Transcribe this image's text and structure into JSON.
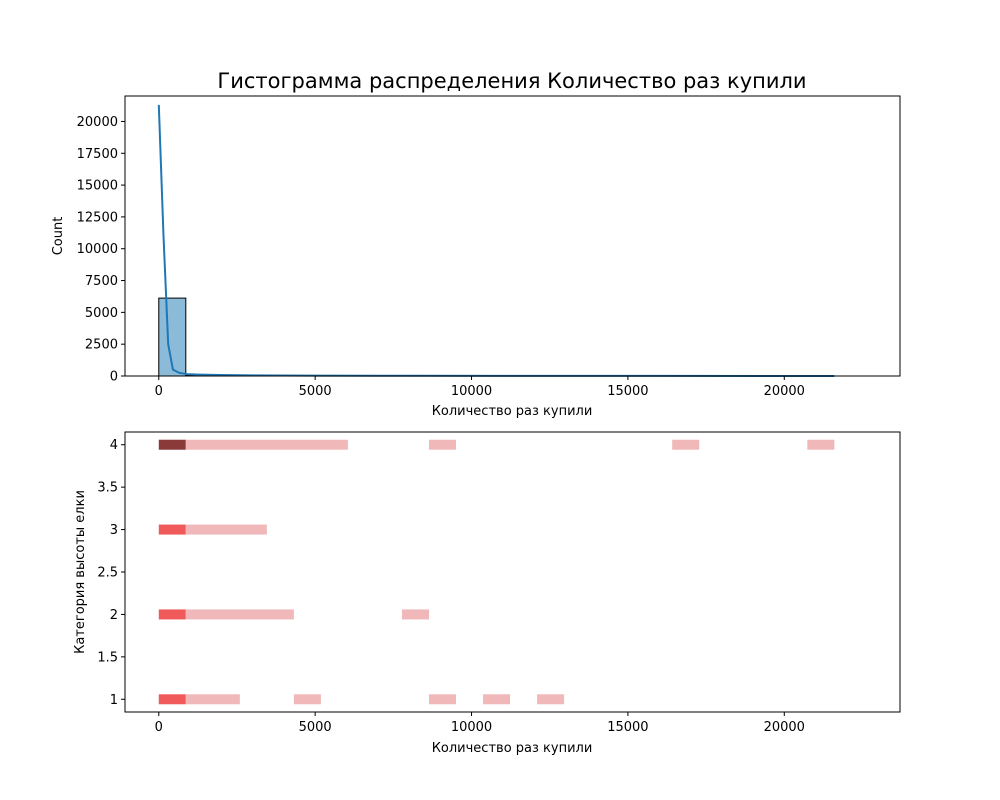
{
  "chart_data": [
    {
      "type": "bar",
      "title": "Гистограмма распределения Количество раз купили",
      "xlabel": "Количество раз купили",
      "ylabel": "Count",
      "xlim": [
        -1080,
        23700
      ],
      "ylim": [
        0,
        22000
      ],
      "xticks": [
        0,
        5000,
        10000,
        15000,
        20000
      ],
      "yticks": [
        0,
        2500,
        5000,
        7500,
        10000,
        12500,
        15000,
        17500,
        20000
      ],
      "bar_color": "#8cbad9",
      "bar_edge_color": "#000000",
      "kde_color": "#1f77b4",
      "bins": [
        {
          "x0": 0,
          "x1": 864,
          "count": 6120
        },
        {
          "x0": 864,
          "x1": 1728,
          "count": 60
        },
        {
          "x0": 1728,
          "x1": 2592,
          "count": 20
        },
        {
          "x0": 2592,
          "x1": 3456,
          "count": 10
        },
        {
          "x0": 3456,
          "x1": 4320,
          "count": 8
        },
        {
          "x0": 4320,
          "x1": 5184,
          "count": 5
        },
        {
          "x0": 5184,
          "x1": 6048,
          "count": 3
        }
      ],
      "kde": {
        "x": [
          0,
          150,
          300,
          450,
          650,
          900,
          1300,
          2000,
          3000,
          5000,
          8000,
          12000,
          16000,
          21600
        ],
        "y": [
          21300,
          11000,
          2500,
          500,
          250,
          150,
          110,
          80,
          50,
          30,
          15,
          8,
          5,
          3
        ]
      }
    },
    {
      "type": "heatmap",
      "xlabel": "Количество раз купили",
      "ylabel": "Категория высоты елки",
      "xlim": [
        -1080,
        23700
      ],
      "ylim": [
        0.85,
        4.15
      ],
      "xticks": [
        0,
        5000,
        10000,
        15000,
        20000
      ],
      "yticks": [
        1.0,
        1.5,
        2.0,
        2.5,
        3.0,
        3.5,
        4.0
      ],
      "colors": {
        "dark": "#8b3a3a",
        "mid": "#f15a5a",
        "light": "#f0b8b8"
      },
      "cells": [
        {
          "y": 4.0,
          "x0": 0,
          "x1": 864,
          "level": "dark"
        },
        {
          "y": 4.0,
          "x0": 864,
          "x1": 6048,
          "level": "light"
        },
        {
          "y": 4.0,
          "x0": 8640,
          "x1": 9504,
          "level": "light"
        },
        {
          "y": 4.0,
          "x0": 16416,
          "x1": 17280,
          "level": "light"
        },
        {
          "y": 4.0,
          "x0": 20736,
          "x1": 21600,
          "level": "light"
        },
        {
          "y": 3.0,
          "x0": 0,
          "x1": 864,
          "level": "mid"
        },
        {
          "y": 3.0,
          "x0": 864,
          "x1": 3456,
          "level": "light"
        },
        {
          "y": 2.0,
          "x0": 0,
          "x1": 864,
          "level": "mid"
        },
        {
          "y": 2.0,
          "x0": 864,
          "x1": 4320,
          "level": "light"
        },
        {
          "y": 2.0,
          "x0": 7776,
          "x1": 8640,
          "level": "light"
        },
        {
          "y": 1.0,
          "x0": 0,
          "x1": 864,
          "level": "mid"
        },
        {
          "y": 1.0,
          "x0": 864,
          "x1": 2592,
          "level": "light"
        },
        {
          "y": 1.0,
          "x0": 4320,
          "x1": 5184,
          "level": "light"
        },
        {
          "y": 1.0,
          "x0": 8640,
          "x1": 9504,
          "level": "light"
        },
        {
          "y": 1.0,
          "x0": 10368,
          "x1": 11232,
          "level": "light"
        },
        {
          "y": 1.0,
          "x0": 12096,
          "x1": 12960,
          "level": "light"
        }
      ]
    }
  ]
}
